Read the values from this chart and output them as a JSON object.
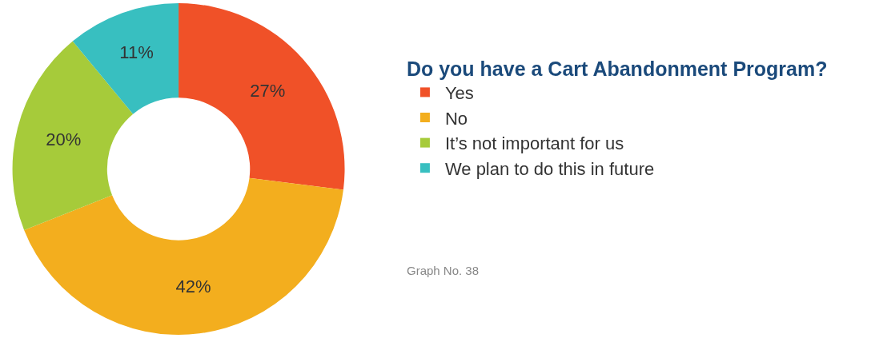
{
  "chart_data": {
    "type": "donut",
    "legend_title": "Do you have a Cart Abandonment Program?",
    "categories": [
      "Yes",
      "No",
      "It’s not important for us",
      "We plan to do this in future"
    ],
    "values": [
      27,
      42,
      20,
      11
    ],
    "colors": [
      "#f05128",
      "#f3ae1e",
      "#a6cb3a",
      "#38bfc0"
    ],
    "value_labels": [
      "27%",
      "42%",
      "20%",
      "11%"
    ],
    "legend": "right",
    "annotations": [
      "Graph No. 38"
    ]
  }
}
